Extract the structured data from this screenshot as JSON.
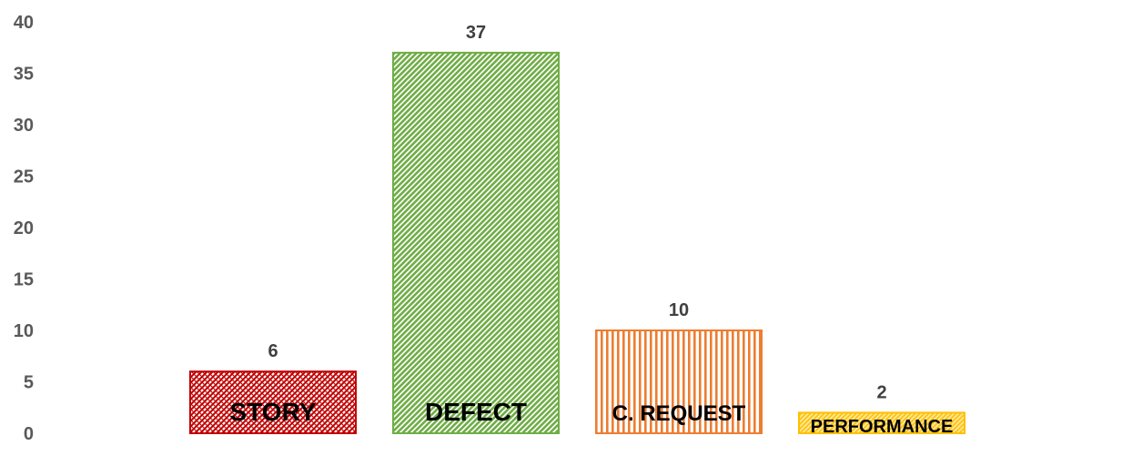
{
  "chart_data": {
    "type": "bar",
    "categories": [
      "STORY",
      "DEFECT",
      "C. REQUEST",
      "PERFORMANCE"
    ],
    "values": [
      6,
      37,
      10,
      2
    ],
    "ylim": [
      0,
      40
    ],
    "yticks": [
      0,
      5,
      10,
      15,
      20,
      25,
      30,
      35,
      40
    ],
    "grid": false,
    "legend": "none",
    "bar_styles": [
      {
        "stroke": "#c00000",
        "pattern": "diagonal-cross",
        "fg": "#c00000",
        "bg": "#ffffff"
      },
      {
        "stroke": "#70ad47",
        "pattern": "wide-diagonal",
        "fg": "#70ad47",
        "bg": "#ffffff"
      },
      {
        "stroke": "#ed7d31",
        "pattern": "vertical",
        "fg": "#ed7d31",
        "bg": "#ffffff"
      },
      {
        "stroke": "#ffc000",
        "pattern": "diagonal",
        "fg": "#ffc000",
        "bg": "#ffffff"
      }
    ]
  }
}
